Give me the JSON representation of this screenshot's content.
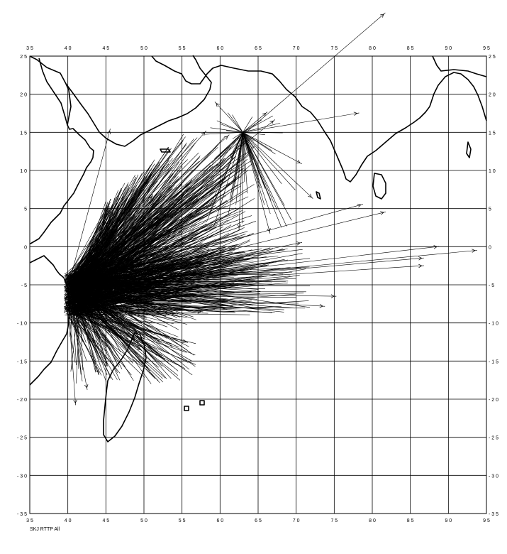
{
  "caption": "SKJ RTTP All",
  "map": {
    "lon_range": [
      35,
      95
    ],
    "lat_range": [
      -35,
      25
    ],
    "lon_ticks": [
      35,
      40,
      45,
      50,
      55,
      60,
      65,
      70,
      75,
      80,
      85,
      90,
      95
    ],
    "lat_ticks": [
      25,
      20,
      15,
      10,
      5,
      0,
      -5,
      -10,
      -15,
      -20,
      -25,
      -30,
      -35
    ],
    "lon_tick_labels": [
      "3 5",
      "4 0",
      "4 5",
      "5 0",
      "5 5",
      "6 0",
      "6 5",
      "7 0",
      "7 5",
      "8 0",
      "8 5",
      "9 0",
      "9 5"
    ],
    "lat_tick_labels_left": [
      "2 5",
      "2 0",
      "1 5",
      "1 0",
      "5",
      "0",
      "- 5",
      "- 1 0",
      "- 1 5",
      "- 2 0",
      "- 2 5",
      "- 3 0",
      "- 3 5"
    ],
    "lat_tick_labels_right": [
      "2 5",
      "2 0",
      "1 5",
      "1 0",
      "5",
      "0",
      "- 5",
      "- 1 0",
      "- 1 5",
      "- 2 0",
      "- 2 5",
      "- 3 0",
      "- 3 5"
    ]
  },
  "chart_data": {
    "type": "scatter",
    "title": "",
    "subtitle": "SKJ RTTP All",
    "xlabel": "",
    "ylabel": "",
    "xlim": [
      35,
      95
    ],
    "ylim": [
      -35,
      25
    ],
    "grid": true,
    "series": [
      {
        "values": [
          {
            "from": [
              39.5,
              -5.5
            ],
            "to": [
              81.5,
              30.5
            ]
          },
          {
            "from": [
              63.0,
              15.0
            ],
            "to": [
              78.0,
              17.5
            ]
          },
          {
            "from": [
              63.0,
              15.0
            ],
            "to": [
              59.5,
              18.8
            ]
          },
          {
            "from": [
              63.0,
              15.0
            ],
            "to": [
              66.0,
              17.5
            ]
          },
          {
            "from": [
              63.0,
              15.0
            ],
            "to": [
              70.5,
              11.0
            ]
          },
          {
            "from": [
              63.0,
              15.0
            ],
            "to": [
              72.0,
              6.5
            ]
          },
          {
            "from": [
              63.0,
              15.0
            ],
            "to": [
              66.5,
              2.0
            ]
          },
          {
            "from": [
              63.0,
              15.0
            ],
            "to": [
              62.5,
              2.5
            ]
          },
          {
            "from": [
              40.5,
              -3.5
            ],
            "to": [
              45.5,
              15.2
            ]
          },
          {
            "from": [
              40.0,
              -4.0
            ],
            "to": [
              45.0,
              5.0
            ]
          },
          {
            "from": [
              40.5,
              -4.5
            ],
            "to": [
              58.0,
              15.0
            ]
          },
          {
            "from": [
              40.5,
              -4.0
            ],
            "to": [
              61.0,
              14.5
            ]
          },
          {
            "from": [
              40.0,
              -5.0
            ],
            "to": [
              67.0,
              16.5
            ]
          },
          {
            "from": [
              40.5,
              -5.5
            ],
            "to": [
              81.5,
              4.5
            ]
          },
          {
            "from": [
              40.5,
              -5.0
            ],
            "to": [
              78.5,
              5.5
            ]
          },
          {
            "from": [
              40.5,
              -5.5
            ],
            "to": [
              88.5,
              0.0
            ]
          },
          {
            "from": [
              40.5,
              -5.5
            ],
            "to": [
              93.5,
              -0.5
            ]
          },
          {
            "from": [
              40.5,
              -5.5
            ],
            "to": [
              86.5,
              -2.5
            ]
          },
          {
            "from": [
              40.5,
              -5.5
            ],
            "to": [
              86.5,
              -1.5
            ]
          },
          {
            "from": [
              40.5,
              -6.0
            ],
            "to": [
              75.0,
              -6.5
            ]
          },
          {
            "from": [
              40.5,
              -6.0
            ],
            "to": [
              73.5,
              -7.8
            ]
          },
          {
            "from": [
              40.5,
              -5.5
            ],
            "to": [
              70.5,
              0.5
            ]
          },
          {
            "from": [
              41.0,
              -8.0
            ],
            "to": [
              55.5,
              -12.5
            ]
          },
          {
            "from": [
              40.0,
              -8.0
            ],
            "to": [
              44.0,
              -16.5
            ]
          },
          {
            "from": [
              40.0,
              -7.0
            ],
            "to": [
              41.0,
              -20.5
            ]
          },
          {
            "from": [
              40.5,
              -8.0
            ],
            "to": [
              42.5,
              -18.5
            ]
          },
          {
            "from": [
              40.5,
              -7.5
            ],
            "to": [
              49.5,
              -13.5
            ]
          },
          {
            "from": [
              40.0,
              -6.0
            ],
            "to": [
              57.5,
              -8.5
            ]
          },
          {
            "from": [
              40.0,
              -5.0
            ],
            "to": [
              47.0,
              0.5
            ]
          },
          {
            "from": [
              40.0,
              -4.5
            ],
            "to": [
              51.0,
              6.5
            ]
          }
        ]
      }
    ]
  }
}
